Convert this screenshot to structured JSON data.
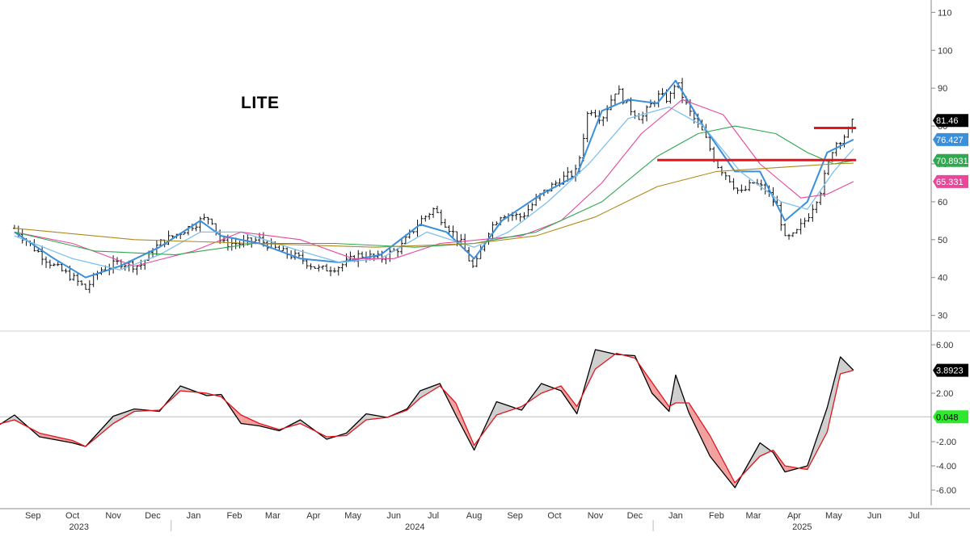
{
  "ticker": "LITE",
  "chart_data": [
    {
      "type": "ohlc-bar",
      "panel": "price",
      "ylim": [
        28,
        112
      ],
      "y_ticks": [
        30,
        40,
        50,
        60,
        70,
        80,
        90,
        100,
        110
      ],
      "grid": false,
      "series": [
        {
          "name": "",
          "kind": "price-close-approx",
          "color": "#000000",
          "x": [
            "2023-09-01",
            "2023-09-15",
            "2023-10-01",
            "2023-10-15",
            "2023-10-25",
            "2023-11-05",
            "2023-11-20",
            "2023-12-05",
            "2023-12-20",
            "2024-01-05",
            "2024-01-20",
            "2024-01-28",
            "2024-02-05",
            "2024-02-20",
            "2024-03-05",
            "2024-03-20",
            "2024-04-05",
            "2024-04-20",
            "2024-05-05",
            "2024-05-20",
            "2024-06-05",
            "2024-06-20",
            "2024-07-05",
            "2024-07-15",
            "2024-07-25",
            "2024-08-05",
            "2024-08-15",
            "2024-08-25",
            "2024-09-05",
            "2024-09-20",
            "2024-10-05",
            "2024-10-20",
            "2024-11-01",
            "2024-11-10",
            "2024-11-20",
            "2024-12-01",
            "2024-12-10",
            "2024-12-20",
            "2025-01-01",
            "2025-01-10",
            "2025-01-15",
            "2025-01-25",
            "2025-02-05",
            "2025-02-15",
            "2025-02-25",
            "2025-03-05",
            "2025-03-15",
            "2025-03-25",
            "2025-04-03",
            "2025-04-08",
            "2025-04-15",
            "2025-04-25",
            "2025-05-05",
            "2025-05-15",
            "2025-05-25",
            "2025-05-30"
          ],
          "values": [
            53,
            48,
            43,
            40,
            37,
            42,
            44,
            43,
            49,
            52,
            55,
            56,
            49,
            49,
            50,
            47,
            45,
            42,
            43,
            46,
            45,
            48,
            55,
            58,
            54,
            49,
            42,
            52,
            57,
            56,
            62,
            66,
            68,
            85,
            82,
            90,
            85,
            82,
            88,
            87,
            92,
            84,
            78,
            70,
            66,
            62,
            65,
            63,
            58,
            50,
            51,
            56,
            63,
            75,
            78,
            81.46
          ]
        },
        {
          "name": "",
          "kind": "ma-fast",
          "color": "#3a8fdc",
          "x": [
            "2023-09-01",
            "2023-10-01",
            "2023-10-25",
            "2023-11-20",
            "2023-12-20",
            "2024-01-20",
            "2024-02-05",
            "2024-03-05",
            "2024-04-05",
            "2024-05-05",
            "2024-06-05",
            "2024-07-05",
            "2024-07-25",
            "2024-08-15",
            "2024-09-05",
            "2024-10-05",
            "2024-11-01",
            "2024-11-20",
            "2024-12-10",
            "2025-01-01",
            "2025-01-15",
            "2025-02-05",
            "2025-03-01",
            "2025-03-20",
            "2025-04-08",
            "2025-04-25",
            "2025-05-10",
            "2025-05-30"
          ],
          "values": [
            52,
            45,
            40,
            43,
            48,
            55,
            51,
            49,
            45,
            44,
            46,
            54,
            52,
            45,
            55,
            62,
            67,
            84,
            87,
            86,
            92,
            80,
            68,
            68,
            55,
            60,
            73,
            76.427
          ]
        },
        {
          "name": "",
          "kind": "ma-slow-light",
          "color": "#7fc0ee",
          "x": [
            "2023-09-01",
            "2023-10-15",
            "2023-11-20",
            "2023-12-20",
            "2024-01-20",
            "2024-02-20",
            "2024-04-05",
            "2024-05-05",
            "2024-06-05",
            "2024-07-10",
            "2024-08-15",
            "2024-09-10",
            "2024-10-10",
            "2024-11-10",
            "2024-12-10",
            "2025-01-10",
            "2025-02-05",
            "2025-03-05",
            "2025-04-05",
            "2025-04-25",
            "2025-05-15",
            "2025-05-30"
          ],
          "values": [
            51,
            45,
            42,
            46,
            52,
            52,
            47,
            44,
            45,
            52,
            48,
            52,
            60,
            70,
            82,
            85,
            80,
            68,
            60,
            58,
            68,
            74
          ]
        },
        {
          "name": "",
          "kind": "ma-50",
          "color": "#e8479a",
          "x": [
            "2023-09-01",
            "2023-10-15",
            "2023-12-01",
            "2024-01-15",
            "2024-02-20",
            "2024-04-05",
            "2024-05-15",
            "2024-06-15",
            "2024-07-20",
            "2024-08-20",
            "2024-09-20",
            "2024-10-20",
            "2024-11-20",
            "2024-12-20",
            "2025-01-20",
            "2025-02-20",
            "2025-03-20",
            "2025-04-20",
            "2025-05-10",
            "2025-05-30"
          ],
          "values": [
            52,
            49,
            43,
            47,
            52,
            50,
            45,
            45,
            49,
            50,
            51,
            55,
            65,
            78,
            87,
            83,
            70,
            61,
            62,
            65.331
          ]
        },
        {
          "name": "",
          "kind": "ma-100",
          "color": "#2fa84f",
          "x": [
            "2023-09-01",
            "2023-11-01",
            "2024-01-01",
            "2024-03-01",
            "2024-05-01",
            "2024-07-01",
            "2024-08-15",
            "2024-10-01",
            "2024-11-20",
            "2025-01-01",
            "2025-02-01",
            "2025-03-01",
            "2025-04-01",
            "2025-04-25",
            "2025-05-15",
            "2025-05-30"
          ],
          "values": [
            52,
            47,
            46,
            49,
            49,
            48,
            49,
            52,
            60,
            72,
            78,
            80,
            78,
            73,
            70,
            70.8931
          ]
        },
        {
          "name": "",
          "kind": "ma-200",
          "color": "#b08a1e",
          "x": [
            "2023-09-01",
            "2023-12-01",
            "2024-03-01",
            "2024-06-01",
            "2024-08-15",
            "2024-10-01",
            "2024-11-15",
            "2025-01-01",
            "2025-02-15",
            "2025-04-01",
            "2025-05-15",
            "2025-05-30"
          ],
          "values": [
            53,
            50,
            49,
            48,
            49,
            51,
            56,
            64,
            68,
            69,
            70,
            70.2
          ]
        }
      ],
      "horizontal_levels": [
        {
          "value": 79.5,
          "from": "2025-04-30",
          "to": "2025-06-01",
          "color": "#e3141b"
        },
        {
          "value": 71.0,
          "from": "2025-01-01",
          "to": "2025-06-01",
          "color": "#e3141b"
        }
      ],
      "last_value_labels": [
        {
          "text": "81.46",
          "value": 81.46,
          "bg": "#000000",
          "fg": "#ffffff"
        },
        {
          "text": "76.427",
          "value": 76.427,
          "bg": "#3a8fdc",
          "fg": "#ffffff"
        },
        {
          "text": "70.8931",
          "value": 70.8931,
          "bg": "#2fa84f",
          "fg": "#ffffff"
        },
        {
          "text": "65.331",
          "value": 65.331,
          "bg": "#e8479a",
          "fg": "#ffffff"
        }
      ]
    },
    {
      "type": "line",
      "panel": "oscillator",
      "ylim": [
        -7.0,
        6.8
      ],
      "y_ticks": [
        "6.00",
        "2.00",
        "-2.00",
        "-4.00",
        "-6.00"
      ],
      "zero_line": 0.048,
      "series": [
        {
          "name": "",
          "color": "#000000",
          "x": [
            "2023-08-15",
            "2023-09-01",
            "2023-09-20",
            "2023-10-15",
            "2023-10-25",
            "2023-11-15",
            "2023-12-01",
            "2023-12-20",
            "2024-01-05",
            "2024-01-25",
            "2024-02-05",
            "2024-02-20",
            "2024-03-05",
            "2024-03-20",
            "2024-04-05",
            "2024-04-25",
            "2024-05-10",
            "2024-05-25",
            "2024-06-10",
            "2024-06-25",
            "2024-07-05",
            "2024-07-20",
            "2024-08-01",
            "2024-08-15",
            "2024-09-01",
            "2024-09-20",
            "2024-10-05",
            "2024-10-20",
            "2024-11-01",
            "2024-11-15",
            "2024-12-01",
            "2024-12-15",
            "2024-12-28",
            "2025-01-10",
            "2025-01-15",
            "2025-01-25",
            "2025-02-10",
            "2025-03-01",
            "2025-03-20",
            "2025-03-30",
            "2025-04-08",
            "2025-04-25",
            "2025-05-10",
            "2025-05-20",
            "2025-05-30"
          ],
          "values": [
            -1.0,
            0.2,
            -1.6,
            -2.1,
            -2.4,
            0.1,
            0.7,
            0.5,
            2.6,
            1.8,
            1.9,
            -0.5,
            -0.7,
            -1.1,
            -0.2,
            -1.8,
            -1.3,
            0.3,
            0.0,
            0.7,
            2.2,
            2.8,
            0.2,
            -2.7,
            1.3,
            0.6,
            2.8,
            2.2,
            0.3,
            5.6,
            5.2,
            5.1,
            2.0,
            0.5,
            3.5,
            0.4,
            -3.2,
            -5.8,
            -2.1,
            -2.9,
            -4.5,
            -4.0,
            0.8,
            5.0,
            3.89
          ]
        },
        {
          "name": "",
          "color": "#e3141b",
          "x": [
            "2023-08-15",
            "2023-09-01",
            "2023-09-20",
            "2023-10-15",
            "2023-10-25",
            "2023-11-15",
            "2023-12-01",
            "2023-12-20",
            "2024-01-05",
            "2024-01-25",
            "2024-02-05",
            "2024-02-20",
            "2024-03-05",
            "2024-03-20",
            "2024-04-05",
            "2024-04-25",
            "2024-05-10",
            "2024-05-25",
            "2024-06-10",
            "2024-06-25",
            "2024-07-05",
            "2024-07-20",
            "2024-08-01",
            "2024-08-15",
            "2024-09-01",
            "2024-09-20",
            "2024-10-05",
            "2024-10-20",
            "2024-11-01",
            "2024-11-15",
            "2024-12-01",
            "2024-12-15",
            "2024-12-28",
            "2025-01-10",
            "2025-01-15",
            "2025-01-25",
            "2025-02-10",
            "2025-03-01",
            "2025-03-20",
            "2025-03-30",
            "2025-04-08",
            "2025-04-25",
            "2025-05-10",
            "2025-05-20",
            "2025-05-30"
          ],
          "values": [
            -0.7,
            -0.2,
            -1.3,
            -1.9,
            -2.4,
            -0.5,
            0.5,
            0.6,
            2.2,
            2.0,
            1.7,
            0.2,
            -0.5,
            -1.0,
            -0.5,
            -1.6,
            -1.5,
            -0.2,
            0.0,
            0.6,
            1.6,
            2.6,
            1.2,
            -2.3,
            0.2,
            0.9,
            2.0,
            2.6,
            0.9,
            4.0,
            5.3,
            4.9,
            2.9,
            0.9,
            1.2,
            1.2,
            -1.5,
            -5.4,
            -3.2,
            -2.7,
            -4.0,
            -4.3,
            -1.2,
            3.6,
            3.8923
          ]
        }
      ],
      "last_value_labels": [
        {
          "text": "3.8923",
          "value": 3.8923,
          "bg": "#000000",
          "fg": "#ffffff"
        },
        {
          "text": "0.048",
          "value": 0.048,
          "bg": "#2ee82e",
          "fg": "#000000"
        }
      ]
    }
  ],
  "x_axis": {
    "range": [
      "2023-08-21",
      "2025-07-28"
    ],
    "months": [
      {
        "label": "Sep",
        "date": "2023-09-15"
      },
      {
        "label": "Oct",
        "date": "2023-10-15"
      },
      {
        "label": "Nov",
        "date": "2023-11-15"
      },
      {
        "label": "Dec",
        "date": "2023-12-15"
      },
      {
        "label": "Jan",
        "date": "2024-01-15"
      },
      {
        "label": "Feb",
        "date": "2024-02-15"
      },
      {
        "label": "Mar",
        "date": "2024-03-15"
      },
      {
        "label": "Apr",
        "date": "2024-04-15"
      },
      {
        "label": "May",
        "date": "2024-05-15"
      },
      {
        "label": "Jun",
        "date": "2024-06-15"
      },
      {
        "label": "Jul",
        "date": "2024-07-15"
      },
      {
        "label": "Aug",
        "date": "2024-08-15"
      },
      {
        "label": "Sep",
        "date": "2024-09-15"
      },
      {
        "label": "Oct",
        "date": "2024-10-15"
      },
      {
        "label": "Nov",
        "date": "2024-11-15"
      },
      {
        "label": "Dec",
        "date": "2024-12-15"
      },
      {
        "label": "Jan",
        "date": "2025-01-15"
      },
      {
        "label": "Feb",
        "date": "2025-02-15"
      },
      {
        "label": "Mar",
        "date": "2025-03-15"
      },
      {
        "label": "Apr",
        "date": "2025-04-15"
      },
      {
        "label": "May",
        "date": "2025-05-15"
      },
      {
        "label": "Jun",
        "date": "2025-06-15"
      },
      {
        "label": "Jul",
        "date": "2025-07-15"
      }
    ],
    "years": [
      {
        "label": "2023",
        "date": "2023-10-20"
      },
      {
        "label": "2024",
        "date": "2024-07-01"
      },
      {
        "label": "2025",
        "date": "2025-04-21"
      }
    ]
  }
}
